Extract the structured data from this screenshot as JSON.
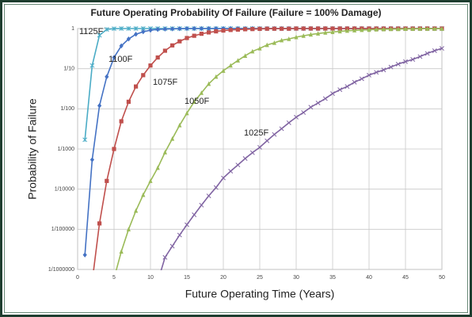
{
  "chart_data": {
    "type": "line",
    "title": "Future Operating Probability Of Failure (Failure = 100% Damage)",
    "x_label": "Future Operating Time (Years)",
    "y_label": "Probability of Failure",
    "log_y": true,
    "grid": true,
    "xlim": [
      0,
      50
    ],
    "xticks": [
      0,
      5,
      10,
      15,
      20,
      25,
      30,
      35,
      40,
      45,
      50
    ],
    "ylim": [
      1e-06,
      1
    ],
    "yticks": [
      {
        "value": 1e-06,
        "label": "1/1000000"
      },
      {
        "value": 1e-05,
        "label": "1/100000"
      },
      {
        "value": 0.0001,
        "label": "1/10000"
      },
      {
        "value": 0.001,
        "label": "1/1000"
      },
      {
        "value": 0.01,
        "label": "1/100"
      },
      {
        "value": 0.1,
        "label": "1/10"
      },
      1
    ],
    "x": [
      1,
      2,
      3,
      4,
      5,
      6,
      7,
      8,
      9,
      10,
      11,
      12,
      13,
      14,
      15,
      16,
      17,
      18,
      19,
      20,
      21,
      22,
      23,
      24,
      25,
      26,
      27,
      28,
      29,
      30,
      31,
      32,
      33,
      34,
      35,
      36,
      37,
      38,
      39,
      40,
      41,
      42,
      43,
      44,
      45,
      46,
      47,
      48,
      49,
      50
    ],
    "series": [
      {
        "name": "1125F",
        "color": "#4bacc6",
        "marker": "asterisk",
        "values": [
          0.0017,
          0.12,
          0.68,
          0.95,
          0.99,
          1,
          1,
          1,
          1,
          1,
          1,
          1,
          1,
          1,
          1,
          1,
          1,
          1,
          1,
          1,
          1,
          1,
          1,
          1,
          1,
          1,
          1,
          1,
          1,
          1,
          1,
          1,
          1,
          1,
          1,
          1,
          1,
          1,
          1,
          1,
          1,
          1,
          1,
          1,
          1,
          1,
          1,
          1,
          1,
          1
        ]
      },
      {
        "name": "1100F",
        "color": "#4472c4",
        "marker": "diamond",
        "values": [
          2.3e-06,
          0.00054,
          0.012,
          0.063,
          0.19,
          0.37,
          0.55,
          0.72,
          0.83,
          0.91,
          0.95,
          0.97,
          0.98,
          0.99,
          1,
          1,
          1,
          1,
          1,
          1,
          1,
          1,
          1,
          1,
          1,
          1,
          1,
          1,
          1,
          1,
          1,
          1,
          1,
          1,
          1,
          1,
          1,
          1,
          1,
          1,
          1,
          1,
          1,
          1,
          1,
          1,
          1,
          1,
          1,
          1
        ]
      },
      {
        "name": "1075F",
        "color": "#c0504d",
        "marker": "square",
        "values": [
          null,
          5e-07,
          1.4e-05,
          0.00016,
          0.001,
          0.0049,
          0.015,
          0.036,
          0.069,
          0.12,
          0.19,
          0.28,
          0.38,
          0.48,
          0.58,
          0.66,
          0.74,
          0.8,
          0.85,
          0.89,
          0.92,
          0.94,
          0.96,
          0.97,
          0.98,
          0.99,
          0.99,
          0.99,
          0.99,
          1,
          1,
          1,
          1,
          1,
          1,
          1,
          1,
          1,
          1,
          1,
          1,
          1,
          1,
          1,
          1,
          1,
          1,
          1,
          1,
          1
        ]
      },
      {
        "name": "1050F",
        "color": "#9bbb59",
        "marker": "triangle",
        "values": [
          null,
          null,
          null,
          null,
          6e-07,
          2.8e-06,
          1e-05,
          2.9e-05,
          7.2e-05,
          0.00016,
          0.00034,
          0.00083,
          0.0018,
          0.0039,
          0.0078,
          0.015,
          0.025,
          0.042,
          0.063,
          0.089,
          0.12,
          0.16,
          0.21,
          0.27,
          0.32,
          0.39,
          0.44,
          0.51,
          0.55,
          0.61,
          0.66,
          0.71,
          0.75,
          0.79,
          0.82,
          0.85,
          0.88,
          0.9,
          0.92,
          0.93,
          0.95,
          0.96,
          0.97,
          0.97,
          0.98,
          0.98,
          0.99,
          0.99,
          0.99,
          0.99
        ]
      },
      {
        "name": "1025F",
        "color": "#8064a2",
        "marker": "x",
        "values": [
          null,
          null,
          null,
          null,
          null,
          null,
          null,
          null,
          null,
          null,
          5e-07,
          2e-06,
          3.8e-06,
          7.2e-06,
          1.3e-05,
          2.3e-05,
          4e-05,
          6.8e-05,
          0.00011,
          0.00019,
          0.00028,
          0.0004,
          0.00058,
          0.00081,
          0.0011,
          0.0016,
          0.0023,
          0.0032,
          0.0045,
          0.0062,
          0.0081,
          0.011,
          0.014,
          0.018,
          0.024,
          0.03,
          0.036,
          0.046,
          0.056,
          0.069,
          0.081,
          0.093,
          0.11,
          0.13,
          0.15,
          0.17,
          0.2,
          0.24,
          0.28,
          0.32
        ]
      }
    ]
  }
}
